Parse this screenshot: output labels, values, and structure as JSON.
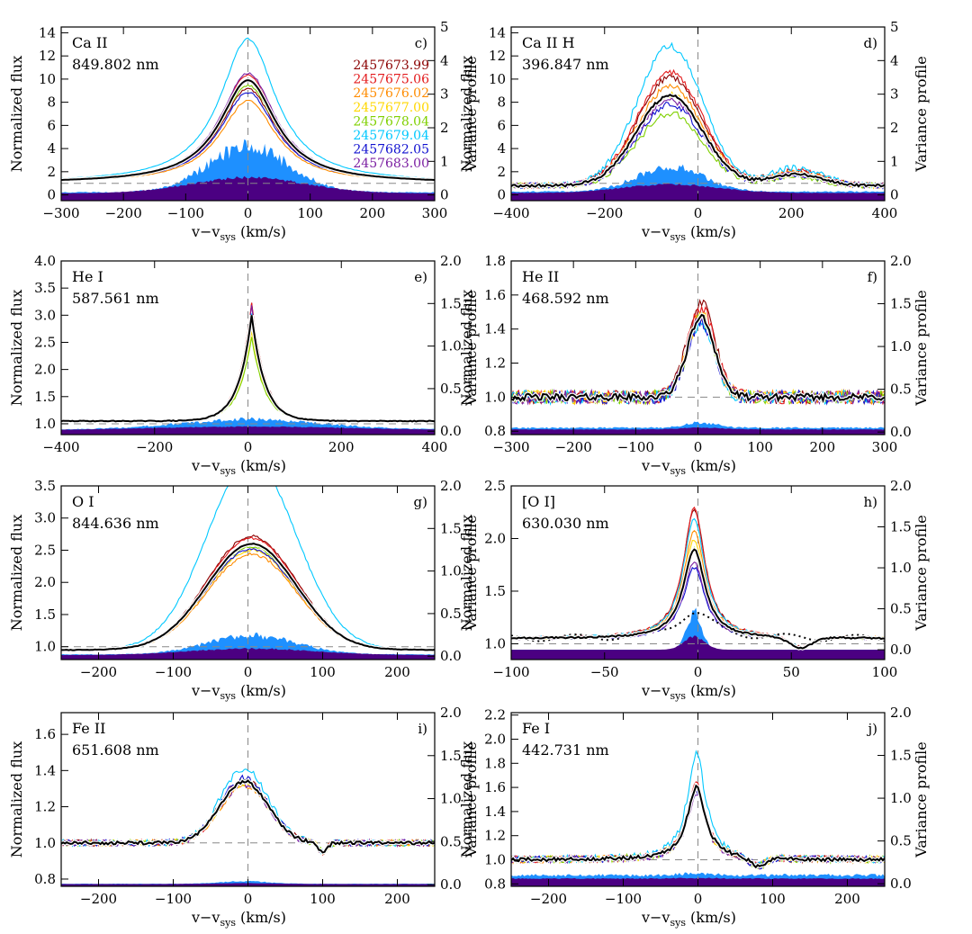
{
  "figure": {
    "legend_dates": [
      {
        "label": "2457673.99",
        "color": "#8b0000"
      },
      {
        "label": "2457675.06",
        "color": "#e31a1c"
      },
      {
        "label": "2457676.02",
        "color": "#ff8c00"
      },
      {
        "label": "2457677.00",
        "color": "#ffd700"
      },
      {
        "label": "2457678.04",
        "color": "#7fd000"
      },
      {
        "label": "2457679.04",
        "color": "#00c8ff"
      },
      {
        "label": "2457682.05",
        "color": "#1010d0"
      },
      {
        "label": "2457683.00",
        "color": "#7b1fa2"
      }
    ],
    "mean_color": "#000000",
    "variance_colors": {
      "fill_blue": "#1e90ff",
      "fill_purple": "#4b0082"
    }
  },
  "chart_data": [
    {
      "type": "line",
      "panel": "c)",
      "title": "Ca II",
      "subtitle": "849.802 nm",
      "xlabel": "v−v",
      "xlabel_sub": "sys",
      "xlabel_unit": " (km/s)",
      "ylabel": "Normalized flux",
      "y2label": "Variance profile",
      "xlim": [
        -300,
        300
      ],
      "xticks": [
        -300,
        -200,
        -100,
        0,
        100,
        200,
        300
      ],
      "ylim": [
        -0.5,
        14.5
      ],
      "yticks": [
        0,
        2,
        4,
        6,
        8,
        10,
        12,
        14
      ],
      "y2lim": [
        -0.17,
        5
      ],
      "y2ticks": [
        0,
        1,
        2,
        3,
        4,
        5
      ],
      "y2dec": 0,
      "baseline": 1.0,
      "mean_peak": 9.9,
      "peak_v": 0,
      "width": 55,
      "noise": 0.02,
      "shape": "lorentz",
      "spread": [
        -0.08,
        0.05,
        -0.2,
        0.0,
        -0.05,
        0.4,
        -0.12,
        0.07
      ],
      "variance_peak": 1.35,
      "variance_width": 65,
      "variance_base": 0.08,
      "legend": true
    },
    {
      "type": "line",
      "panel": "d)",
      "title": "Ca II H",
      "subtitle": "396.847 nm",
      "xlabel": "v−v",
      "xlabel_sub": "sys",
      "xlabel_unit": " (km/s)",
      "ylabel": "Normalized flux",
      "y2label": "Variance profile",
      "xlim": [
        -400,
        400
      ],
      "xticks": [
        -400,
        -200,
        0,
        200,
        400
      ],
      "ylim": [
        -0.5,
        14.5
      ],
      "yticks": [
        0,
        2,
        4,
        6,
        8,
        10,
        12,
        14
      ],
      "y2lim": [
        -0.17,
        5
      ],
      "y2ticks": [
        0,
        1,
        2,
        3,
        4,
        5
      ],
      "y2dec": 0,
      "baseline": 0.8,
      "mean_peak": 8.6,
      "peak_v": -60,
      "width": 70,
      "noise": 0.25,
      "shape": "gauss",
      "secondary_peak": {
        "v": 210,
        "height": 1.0,
        "width": 55
      },
      "spread": [
        0.2,
        0.25,
        0.1,
        0.0,
        -0.2,
        0.55,
        -0.1,
        -0.05
      ],
      "variance_peak": 0.75,
      "variance_width": 70,
      "variance_base": 0.1
    },
    {
      "type": "line",
      "panel": "e)",
      "title": "He I",
      "subtitle": "587.561 nm",
      "xlabel": "v−v",
      "xlabel_sub": "sys",
      "xlabel_unit": " (km/s)",
      "ylabel": "Normalized flux",
      "y2label": "Variance profile",
      "xlim": [
        -400,
        400
      ],
      "xticks": [
        -400,
        -200,
        0,
        200,
        400
      ],
      "ylim": [
        0.8,
        4.0
      ],
      "yticks": [
        1.0,
        1.5,
        2.0,
        2.5,
        3.0,
        3.5,
        4.0
      ],
      "y2lim": [
        -0.04,
        2.0
      ],
      "y2ticks": [
        0.0,
        0.5,
        1.0,
        1.5,
        2.0
      ],
      "y2dec": 1,
      "baseline": 1.05,
      "mean_peak": 3.0,
      "peak_v": 8,
      "width": 28,
      "noise": 0.015,
      "shape": "cusp",
      "spread": [
        0.12,
        0.12,
        -0.05,
        -0.15,
        -0.2,
        0.02,
        -0.05,
        0.1
      ],
      "variance_peak": 0.12,
      "variance_width": 150,
      "variance_base": 0.02
    },
    {
      "type": "line",
      "panel": "f)",
      "title": "He II",
      "subtitle": "468.592 nm",
      "xlabel": "v−v",
      "xlabel_sub": "sys",
      "xlabel_unit": " (km/s)",
      "ylabel": "Normalized flux",
      "y2label": "Variance profile",
      "xlim": [
        -300,
        300
      ],
      "xticks": [
        -300,
        -200,
        -100,
        0,
        100,
        200,
        300
      ],
      "ylim": [
        0.78,
        1.8
      ],
      "yticks": [
        0.8,
        1.0,
        1.2,
        1.4,
        1.6,
        1.8
      ],
      "y2lim": [
        -0.03,
        2.0
      ],
      "y2ticks": [
        0.0,
        0.5,
        1.0,
        1.5,
        2.0
      ],
      "y2dec": 1,
      "baseline": 1.0,
      "mean_peak": 1.47,
      "peak_v": 5,
      "width": 22,
      "noise": 0.04,
      "shape": "gauss",
      "spread": [
        0.2,
        0.12,
        0.03,
        0.0,
        -0.03,
        -0.08,
        -0.06,
        0.0
      ],
      "variance_peak": 0.06,
      "variance_width": 25,
      "variance_base": 0.05
    },
    {
      "type": "line",
      "panel": "g)",
      "title": "O I",
      "subtitle": "844.636 nm",
      "xlabel": "v−v",
      "xlabel_sub": "sys",
      "xlabel_unit": " (km/s)",
      "ylabel": "Normalized flux",
      "y2label": "Variance profile",
      "xlim": [
        -250,
        250
      ],
      "xticks": [
        -200,
        -100,
        0,
        100,
        200
      ],
      "ylim": [
        0.8,
        3.5
      ],
      "yticks": [
        1.0,
        1.5,
        2.0,
        2.5,
        3.0,
        3.5
      ],
      "y2lim": [
        -0.04,
        2.0
      ],
      "y2ticks": [
        0.0,
        0.5,
        1.0,
        1.5,
        2.0
      ],
      "y2dec": 1,
      "baseline": 0.95,
      "mean_peak": 2.6,
      "peak_v": 5,
      "width": 60,
      "noise": 0.01,
      "shape": "gauss",
      "spread": [
        0.07,
        0.05,
        -0.1,
        -0.06,
        -0.03,
        0.78,
        -0.05,
        0.0
      ],
      "variance_peak": 0.22,
      "variance_width": 60,
      "variance_base": 0.02
    },
    {
      "type": "line",
      "panel": "h)",
      "title": "[O I]",
      "subtitle": "630.030 nm",
      "xlabel": "v−v",
      "xlabel_sub": "sys",
      "xlabel_unit": " (km/s)",
      "ylabel": "Normalized flux",
      "y2label": "Variance profile",
      "xlim": [
        -100,
        100
      ],
      "xticks": [
        -100,
        -50,
        0,
        50,
        100
      ],
      "ylim": [
        0.85,
        2.5
      ],
      "yticks": [
        1.0,
        1.5,
        2.0,
        2.5
      ],
      "y2lim": [
        -0.12,
        2.0
      ],
      "y2ticks": [
        0.0,
        0.5,
        1.0,
        1.5,
        2.0
      ],
      "y2dec": 1,
      "baseline": 1.05,
      "mean_peak": 1.9,
      "peak_v": -2,
      "width": 7,
      "noise": 0.015,
      "shape": "lorentz",
      "dip": {
        "v": 55,
        "depth": 0.1,
        "width": 6
      },
      "spread": [
        0.45,
        0.45,
        0.2,
        0.1,
        0.0,
        0.35,
        -0.2,
        -0.15
      ],
      "dotted": {
        "peak": 1.3,
        "width": 12
      },
      "variance_peak": 0.45,
      "variance_width": 4,
      "variance_base": 0.0
    },
    {
      "type": "line",
      "panel": "i)",
      "title": "Fe II",
      "subtitle": "651.608 nm",
      "xlabel": "v−v",
      "xlabel_sub": "sys",
      "xlabel_unit": " (km/s)",
      "ylabel": "Normalized flux",
      "y2label": "Variance profile",
      "xlim": [
        -250,
        250
      ],
      "xticks": [
        -200,
        -100,
        0,
        100,
        200
      ],
      "ylim": [
        0.76,
        1.72
      ],
      "yticks": [
        0.8,
        1.0,
        1.2,
        1.4,
        1.6
      ],
      "y2lim": [
        -0.02,
        2.0
      ],
      "y2ticks": [
        0.0,
        0.5,
        1.0,
        1.5,
        2.0
      ],
      "y2dec": 1,
      "baseline": 1.0,
      "mean_peak": 1.34,
      "peak_v": -5,
      "width": 32,
      "noise": 0.018,
      "shape": "gauss",
      "dip": {
        "v": 100,
        "depth": 0.05,
        "width": 6
      },
      "spread": [
        0.02,
        0.0,
        -0.05,
        -0.03,
        0.0,
        0.2,
        0.05,
        -0.04
      ],
      "variance_peak": 0.03,
      "variance_width": 30,
      "variance_base": 0.01
    },
    {
      "type": "line",
      "panel": "j)",
      "title": "Fe I",
      "subtitle": "442.731 nm",
      "xlabel": "v−v",
      "xlabel_sub": "sys",
      "xlabel_unit": " (km/s)",
      "ylabel": "Normalized flux",
      "y2label": "Variance profile",
      "xlim": [
        -250,
        250
      ],
      "xticks": [
        -200,
        -100,
        0,
        100,
        200
      ],
      "ylim": [
        0.78,
        2.22
      ],
      "yticks": [
        0.8,
        1.0,
        1.2,
        1.4,
        1.6,
        1.8,
        2.0,
        2.2
      ],
      "y2lim": [
        -0.03,
        2.0
      ],
      "y2ticks": [
        0.0,
        0.5,
        1.0,
        1.5,
        2.0
      ],
      "y2dec": 1,
      "baseline": 1.0,
      "mean_peak": 1.6,
      "peak_v": -2,
      "width": 15,
      "noise": 0.03,
      "shape": "lorentz",
      "dip": {
        "v": 80,
        "depth": 0.07,
        "width": 10
      },
      "spread": [
        0.02,
        0.05,
        -0.05,
        -0.02,
        0.0,
        0.45,
        -0.05,
        -0.1
      ],
      "variance_peak": 0.02,
      "variance_width": 20,
      "variance_base": 0.1
    }
  ]
}
